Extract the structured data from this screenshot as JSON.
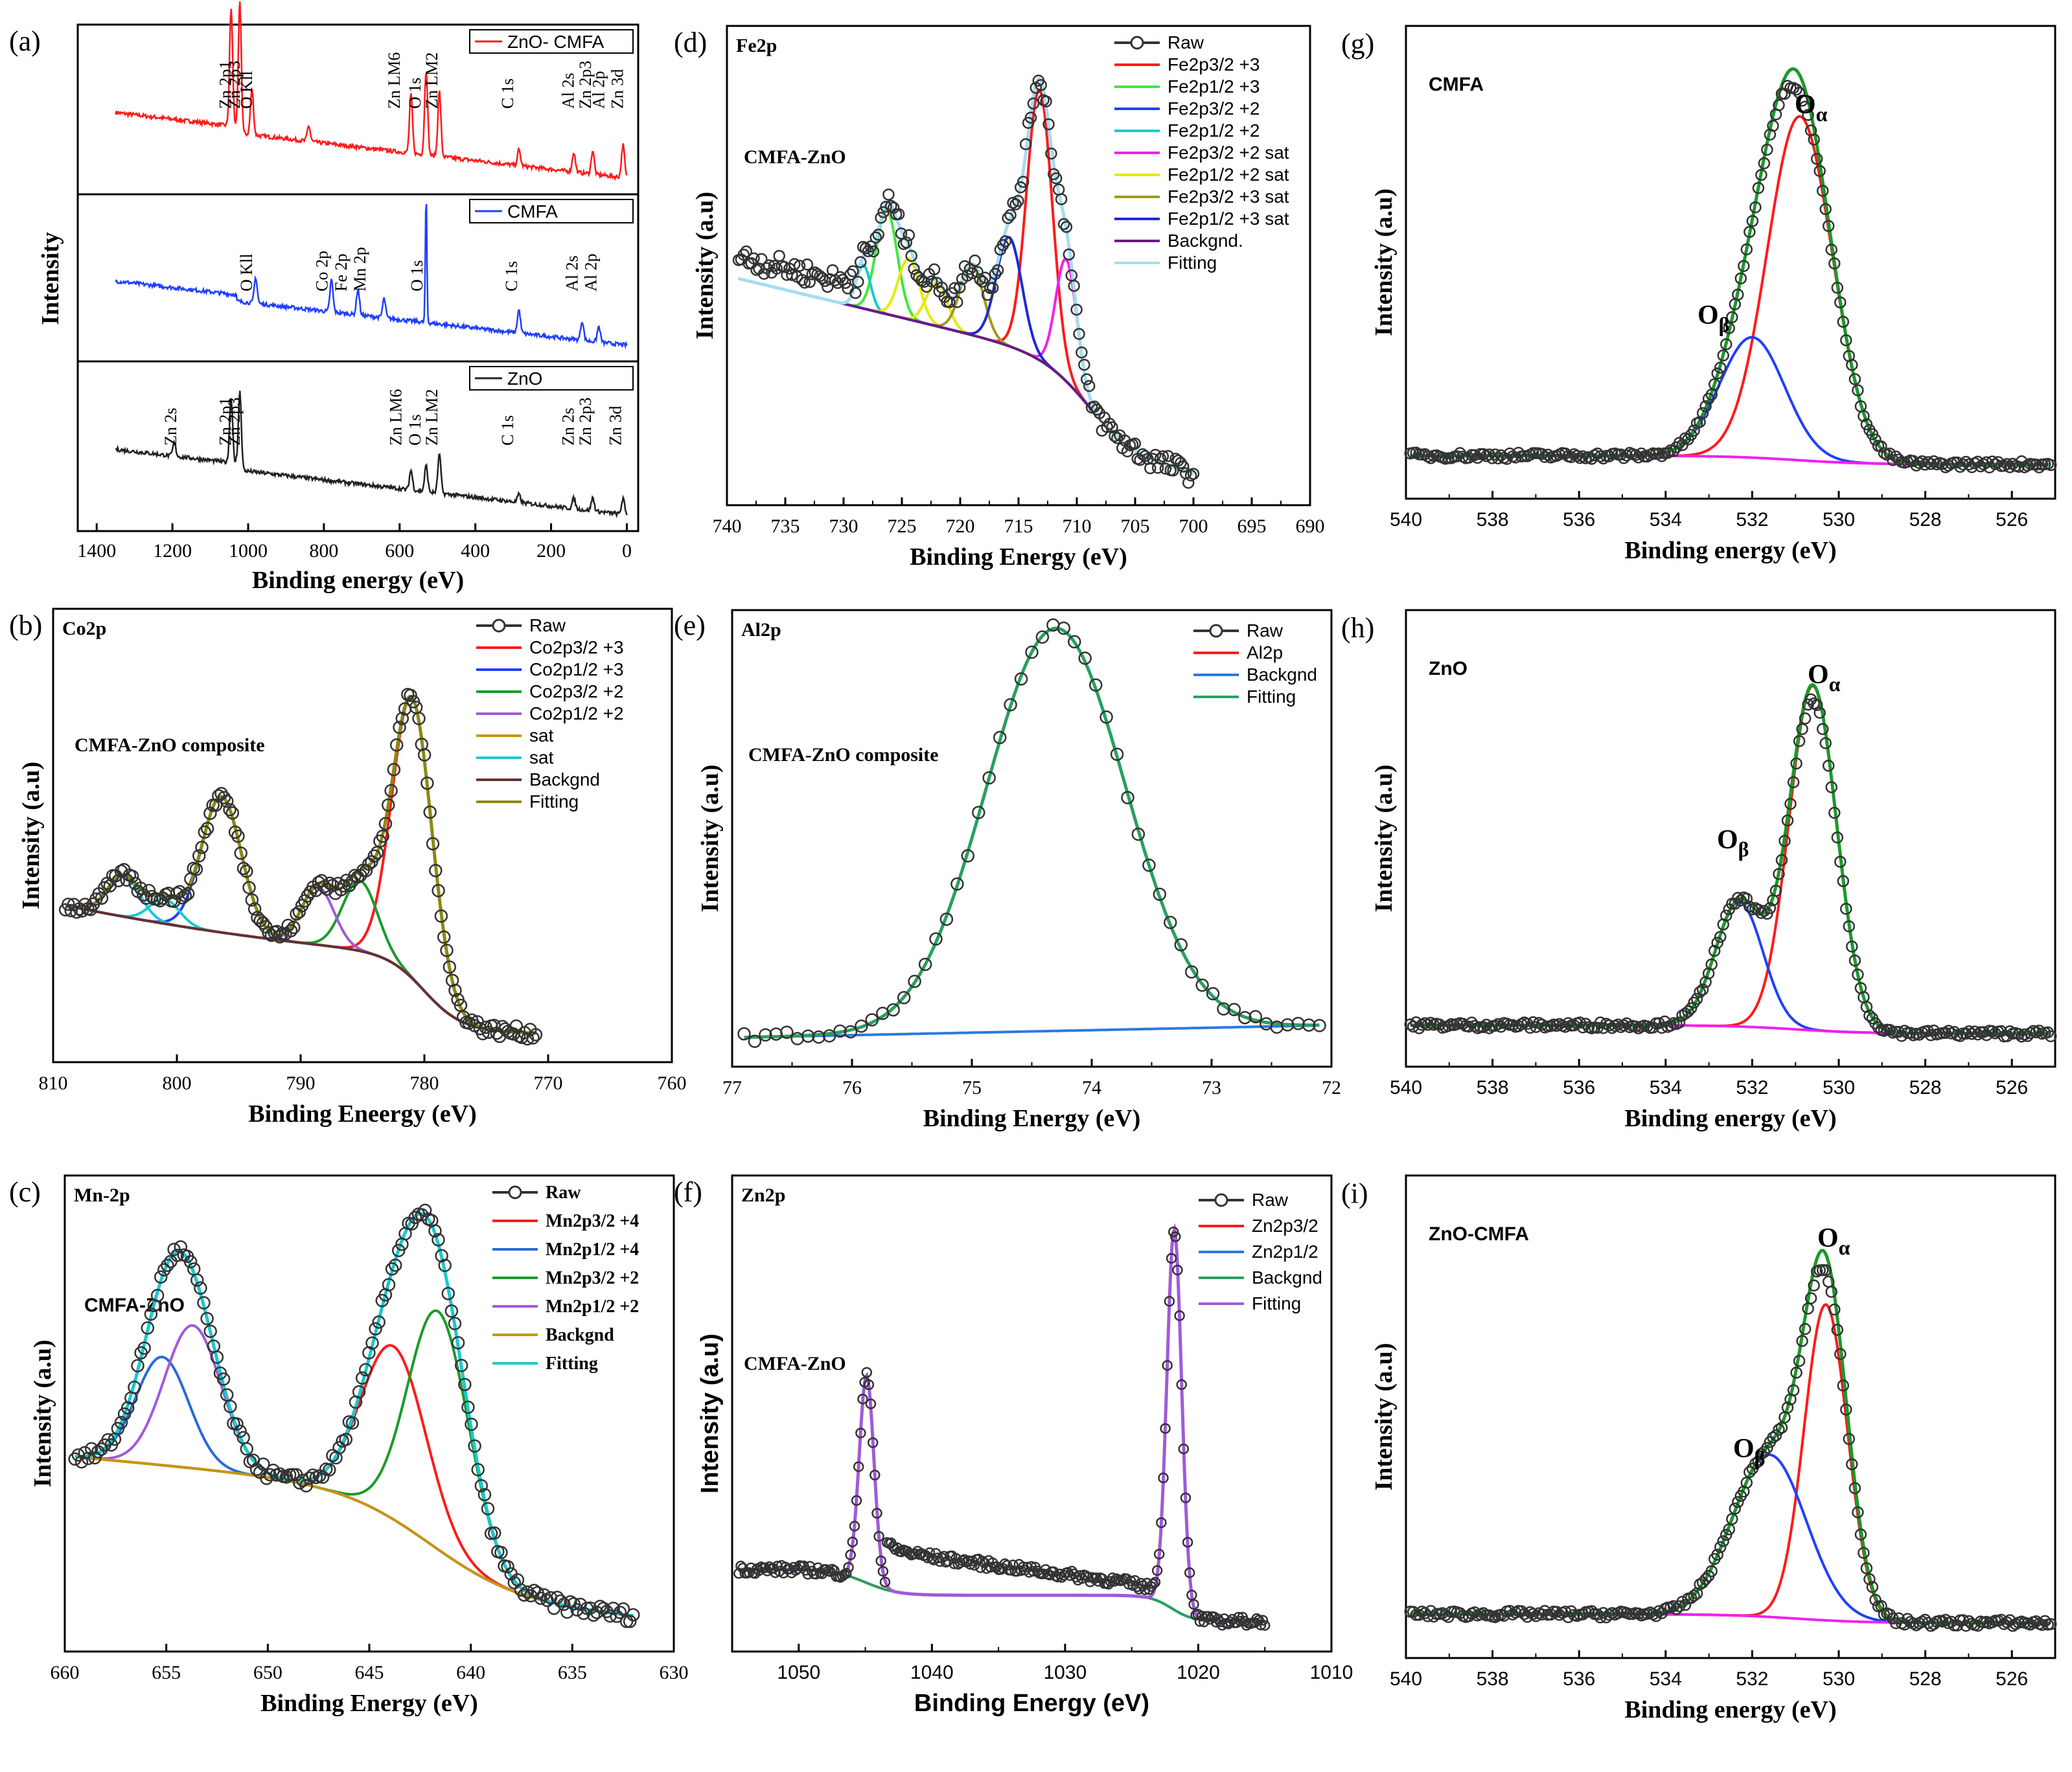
{
  "figure": {
    "description_labels": [
      "(a)",
      "(b)",
      "(c)",
      "(d)",
      "(e)",
      "(f)",
      "(g)",
      "(h)",
      "(i)"
    ]
  },
  "colors": {
    "red": "#ff1a1a",
    "blue": "#1f3fff",
    "green": "#1a9a2a",
    "purple": "#a05ad8",
    "cyan": "#19c9cf",
    "olive": "#8a8a10",
    "brown": "#6b2f2f",
    "magenta": "#f020f0",
    "yellow": "#e9e900",
    "lime": "#3ee83e",
    "navy": "#1a2ad8",
    "lightblue": "#a6dcf0",
    "black": "#222222",
    "mustard": "#c8960c",
    "teal": "#2aa060"
  },
  "chart_data": [
    {
      "id": "a",
      "panel_label": "(a)",
      "type": "line",
      "xlabel": "Binding energy (eV)",
      "ylabel": "Intensity",
      "xlim": [
        1450,
        -30
      ],
      "xticks": [
        "1400",
        "1200",
        "1000",
        "800",
        "600",
        "400",
        "200",
        "0"
      ],
      "subplots": [
        {
          "legend": "ZnO- CMFA",
          "color": "#ff1a1a",
          "peaks": [
            "Zn 2p1",
            "Zn 2p3",
            "O Kll",
            "Zn LM6",
            "O 1s",
            "Zn LM2",
            "C 1s",
            "Al 2s",
            "Zn 2p3",
            "Al 2p",
            "Zn 3d"
          ]
        },
        {
          "legend": "CMFA",
          "color": "#1f3fff",
          "peaks": [
            "O Kll",
            "Co 2p",
            "Fe 2p",
            "Mn 2p",
            "O 1s",
            "C 1s",
            "Al 2s",
            "Al 2p"
          ]
        },
        {
          "legend": "ZnO",
          "color": "#222222",
          "peaks": [
            "Zn 2s",
            "Zn 2p1",
            "Zn 2p3",
            "Zn LM6",
            "O 1s",
            "Zn LM2",
            "C 1s",
            "Zn 2s",
            "Zn 2p3",
            "Zn 3d"
          ]
        }
      ]
    },
    {
      "id": "b",
      "panel_label": "(b)",
      "type": "line",
      "title": "Co2p",
      "annotation": "CMFA-ZnO composite",
      "xlabel": "Binding Eneergy (eV)",
      "ylabel": "Intensity (a.u)",
      "xlim": [
        810,
        760
      ],
      "xticks": [
        "810",
        "800",
        "790",
        "780",
        "770",
        "760"
      ],
      "legend": [
        "Raw",
        "Co2p3/2 +3",
        "Co2p1/2 +3",
        "Co2p3/2 +2",
        "Co2p1/2 +2",
        "sat",
        "sat",
        "Backgnd",
        "Fitting"
      ],
      "peaks_eV": [
        781.0,
        796.4,
        785.2,
        788.6,
        804.3,
        801.0
      ]
    },
    {
      "id": "c",
      "panel_label": "(c)",
      "type": "line",
      "title": "Mn-2p",
      "annotation": "CMFA-ZnO",
      "xlabel": "Binding Energy (eV)",
      "ylabel": "Intensity (a.u)",
      "xlim": [
        660,
        630
      ],
      "xticks": [
        "660",
        "655",
        "650",
        "645",
        "640",
        "635",
        "630"
      ],
      "legend": [
        "Raw",
        "Mn2p3/2 +4",
        "Mn2p1/2 +4",
        "Mn2p3/2 +2",
        "Mn2p1/2 +2",
        "Backgnd",
        "Fitting"
      ],
      "peaks_eV": [
        643.8,
        655.2,
        641.6,
        653.7
      ]
    },
    {
      "id": "d",
      "panel_label": "(d)",
      "type": "line",
      "title": "Fe2p",
      "annotation": "CMFA-ZnO",
      "xlabel": "Binding Energy (eV)",
      "ylabel": "Intensity (a.u)",
      "xlim": [
        740,
        690
      ],
      "xticks": [
        "740",
        "735",
        "730",
        "725",
        "720",
        "715",
        "710",
        "705",
        "700",
        "695",
        "690"
      ],
      "legend": [
        "Raw",
        "Fe2p3/2 +3",
        "Fe2p1/2 +3",
        "Fe2p3/2 +2",
        "Fe2p1/2 +2",
        "Fe2p3/2 +2 sat",
        "Fe2p1/2 +2 sat",
        "Fe2p3/2 +3 sat",
        "Fe2p1/2 +3 sat",
        "Backgnd.",
        "Fitting"
      ],
      "peaks_eV": [
        713.2,
        726.3,
        710.9,
        728.3,
        724.4,
        722.0,
        719.0,
        715.8
      ]
    },
    {
      "id": "e",
      "panel_label": "(e)",
      "type": "line",
      "title": "Al2p",
      "annotation": "CMFA-ZnO composite",
      "xlabel": "Binding Energy (eV)",
      "ylabel": "Intensity (a.u)",
      "xlim": [
        77,
        72
      ],
      "xticks": [
        "77",
        "76",
        "75",
        "74",
        "73",
        "72"
      ],
      "legend": [
        "Raw",
        "Al2p",
        "Backgnd",
        "Fitting"
      ],
      "peaks_eV": [
        74.3
      ]
    },
    {
      "id": "f",
      "panel_label": "(f)",
      "type": "line",
      "title": "Zn2p",
      "annotation": "CMFA-ZnO",
      "xlabel": "Binding Energy (eV)",
      "ylabel": "Intensity (a.u)",
      "xlim": [
        1055,
        1010
      ],
      "xticks": [
        "1050",
        "1040",
        "1030",
        "1020",
        "1010"
      ],
      "legend": [
        "Raw",
        "Zn2p3/2",
        "Zn2p1/2",
        "Backgnd",
        "Fitting"
      ],
      "peaks_eV": [
        1021.8,
        1044.9
      ]
    },
    {
      "id": "g",
      "panel_label": "(g)",
      "type": "line",
      "title": "CMFA",
      "xlabel": "Binding energy (eV)",
      "ylabel": "Intensity (a.u)",
      "xlim": [
        540,
        525
      ],
      "xticks": [
        "540",
        "538",
        "536",
        "534",
        "532",
        "530",
        "528",
        "526"
      ],
      "peak_labels": [
        "Oα",
        "Oβ"
      ],
      "peaks_eV": [
        530.9,
        532.0
      ]
    },
    {
      "id": "h",
      "panel_label": "(h)",
      "type": "line",
      "title": "ZnO",
      "xlabel": "Binding energy (eV)",
      "ylabel": "Intensity (a.u)",
      "xlim": [
        540,
        525
      ],
      "xticks": [
        "540",
        "538",
        "536",
        "534",
        "532",
        "530",
        "528",
        "526"
      ],
      "peak_labels": [
        "Oα",
        "Oβ"
      ],
      "peaks_eV": [
        530.6,
        532.3
      ]
    },
    {
      "id": "i",
      "panel_label": "(i)",
      "type": "line",
      "title": "ZnO-CMFA",
      "xlabel": "Binding energy (eV)",
      "ylabel": "Intensity (a.u)",
      "xlim": [
        540,
        525
      ],
      "xticks": [
        "540",
        "538",
        "536",
        "534",
        "532",
        "530",
        "528",
        "526"
      ],
      "peak_labels": [
        "Oα",
        "Oβ"
      ],
      "peaks_eV": [
        530.3,
        531.6
      ]
    }
  ]
}
